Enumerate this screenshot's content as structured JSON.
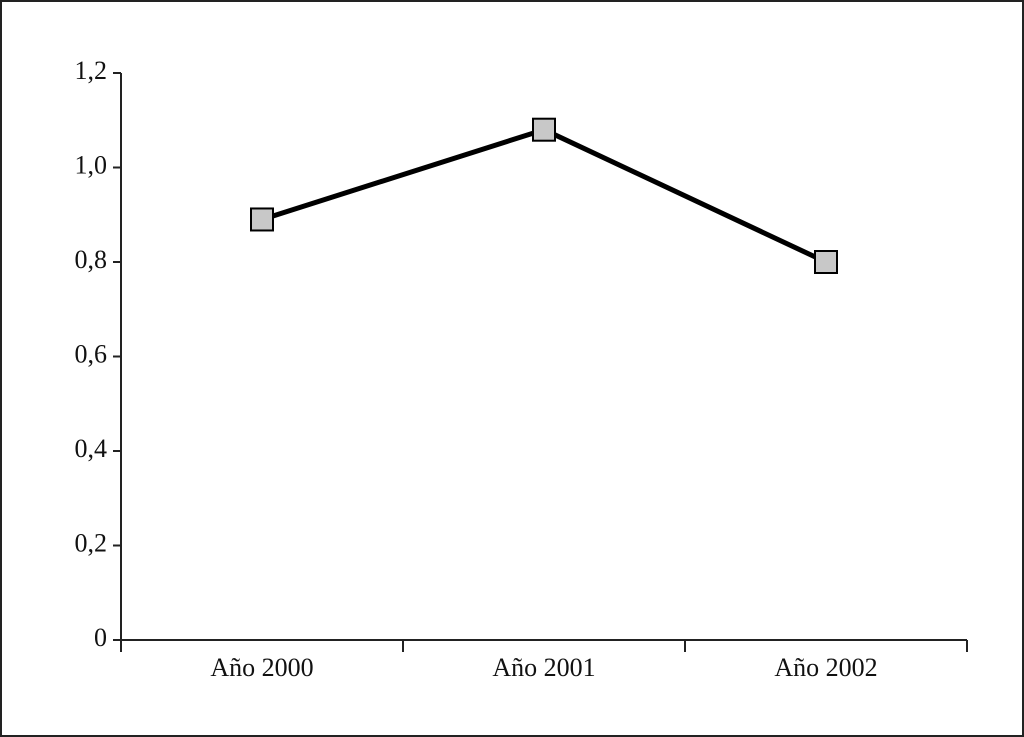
{
  "chart_data": {
    "type": "line",
    "categories": [
      "Año 2000",
      "Año 2001",
      "Año 2002"
    ],
    "series": [
      {
        "color": "#000000",
        "marker_color": "#c8c8c8",
        "values": [
          0.89,
          1.08,
          0.8
        ]
      }
    ],
    "ylim": [
      0,
      1.2
    ],
    "yticks": [
      0,
      {
        "value": 0.2,
        "label": "0,2"
      },
      {
        "value": 0.4,
        "label": "0,4"
      },
      {
        "value": 0.6,
        "label": "0,6"
      },
      {
        "value": 0.8,
        "label": "0,8"
      },
      {
        "value": 1.0,
        "label": "1,0"
      },
      {
        "value": 1.2,
        "label": "1,2"
      }
    ],
    "grid": false
  }
}
